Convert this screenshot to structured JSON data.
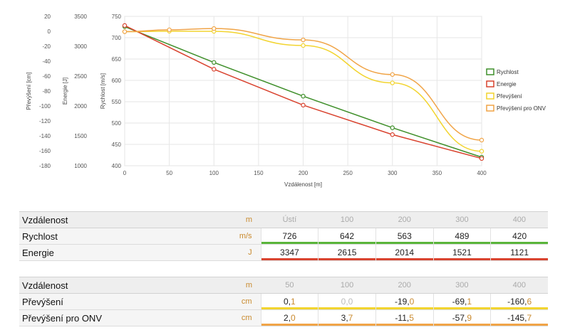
{
  "colors": {
    "rychlost": "#3f8f2a",
    "energie": "#d9432f",
    "prevyseni": "#f2d42f",
    "prevyseni_onv": "#f0a447",
    "unit_text": "#c98a2e"
  },
  "chart_data": {
    "type": "line",
    "xlabel": "Vzdálenost [m]",
    "x_ticks": [
      "0",
      "50",
      "100",
      "150",
      "200",
      "250",
      "300",
      "350",
      "400"
    ],
    "xlim": [
      0,
      400
    ],
    "grid": true,
    "legend_position": "right",
    "axes": [
      {
        "label": "Převýšení [cm]",
        "ticks": [
          "20",
          "0",
          "-20",
          "-40",
          "-60",
          "-80",
          "-100",
          "-120",
          "-140",
          "-160",
          "-180"
        ],
        "range": [
          -180,
          20
        ]
      },
      {
        "label": "Energie [J]",
        "ticks": [
          "3500",
          "3000",
          "2500",
          "2000",
          "1500",
          "1000"
        ],
        "range": [
          1000,
          3500
        ]
      },
      {
        "label": "Rychlost [m/s]",
        "ticks": [
          "750",
          "700",
          "650",
          "600",
          "550",
          "500",
          "450",
          "400"
        ],
        "range": [
          400,
          750
        ]
      }
    ],
    "series": [
      {
        "name": "Rychlost",
        "axis": "Rychlost [m/s]",
        "x": [
          0,
          100,
          200,
          300,
          400
        ],
        "y": [
          726,
          642,
          563,
          489,
          420
        ]
      },
      {
        "name": "Energie",
        "axis": "Energie [J]",
        "x": [
          0,
          100,
          200,
          300,
          400
        ],
        "y": [
          3347,
          2615,
          2014,
          1521,
          1121
        ]
      },
      {
        "name": "Převýšení",
        "axis": "Převýšení [cm]",
        "x": [
          0,
          50,
          100,
          200,
          300,
          400
        ],
        "y": [
          -0.5,
          0.1,
          0.0,
          -19.0,
          -69.1,
          -160.6
        ]
      },
      {
        "name": "Převýšení pro ONV",
        "axis": "Převýšení [cm]",
        "x": [
          0,
          50,
          100,
          200,
          300,
          400
        ],
        "y": [
          -0.5,
          2.0,
          3.7,
          -11.5,
          -57.9,
          -145.7
        ]
      }
    ]
  },
  "table1": {
    "header": {
      "label": "Vzdálenost",
      "unit": "m",
      "cols": [
        "Ústí",
        "100",
        "200",
        "300",
        "400"
      ]
    },
    "rows": [
      {
        "label": "Rychlost",
        "unit": "m/s",
        "values": [
          "726",
          "642",
          "563",
          "489",
          "420"
        ]
      },
      {
        "label": "Energie",
        "unit": "J",
        "values": [
          "3347",
          "2615",
          "2014",
          "1521",
          "1121"
        ]
      }
    ]
  },
  "table2": {
    "header": {
      "label": "Vzdálenost",
      "unit": "m",
      "cols": [
        "50",
        "100",
        "200",
        "300",
        "400"
      ]
    },
    "rows": [
      {
        "label": "Převýšení",
        "unit": "cm",
        "values": [
          [
            "0,",
            "1"
          ],
          [
            "0,",
            "0"
          ],
          [
            "-19,",
            "0"
          ],
          [
            "-69,",
            "1"
          ],
          [
            "-160,",
            "6"
          ]
        ]
      },
      {
        "label": "Převýšení pro ONV",
        "unit": "cm",
        "values": [
          [
            "2,",
            "0"
          ],
          [
            "3,",
            "7"
          ],
          [
            "-11,",
            "5"
          ],
          [
            "-57,",
            "9"
          ],
          [
            "-145,",
            "7"
          ]
        ]
      }
    ]
  }
}
